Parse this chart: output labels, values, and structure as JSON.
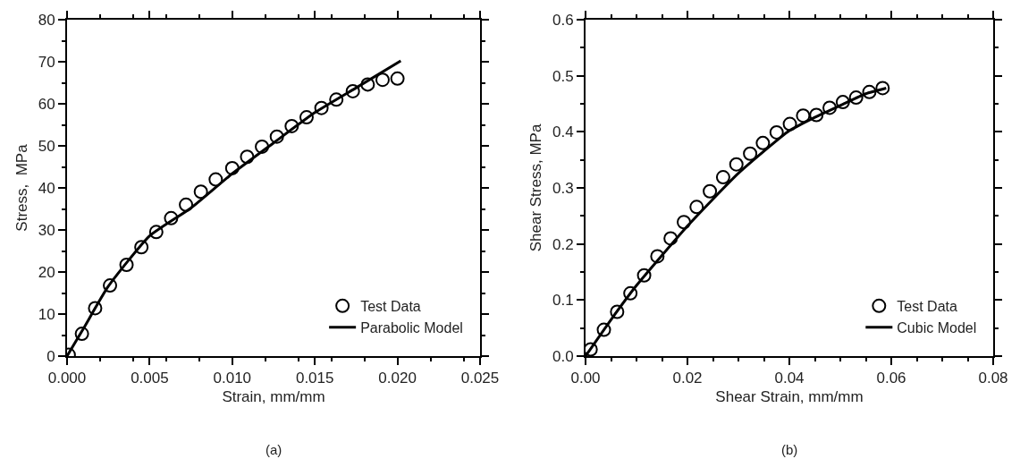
{
  "chart_data": [
    {
      "type": "scatter",
      "xlabel": "Strain, mm/mm",
      "ylabel": "Stress,  MPa",
      "annotations": [
        "(a)"
      ],
      "legend": "bottom right",
      "grid": false,
      "marker": "circle",
      "xlim": [
        0,
        0.025
      ],
      "xticks": [
        {
          "value": 0,
          "label": "0.000"
        },
        0.005,
        {
          "value": 0.01,
          "label": "0.010"
        },
        0.015,
        {
          "value": 0.02,
          "label": "0.020"
        },
        0.025
      ],
      "ylim": [
        0,
        80
      ],
      "yticks": [
        0,
        10,
        20,
        30,
        40,
        50,
        60,
        70,
        80
      ],
      "series": [
        {
          "name": "Test Data",
          "type": "scatter",
          "color": "#000000",
          "x": [
            0.0001,
            0.0009,
            0.0017,
            0.0026,
            0.0036,
            0.0045,
            0.0054,
            0.0063,
            0.0072,
            0.0081,
            0.009,
            0.01,
            0.0109,
            0.0118,
            0.0127,
            0.0136,
            0.0145,
            0.0154,
            0.0163,
            0.0173,
            0.0182,
            0.0191,
            0.02
          ],
          "values": [
            0.3,
            5.3,
            11.4,
            16.8,
            21.7,
            25.9,
            29.5,
            32.8,
            36,
            39.1,
            42,
            44.7,
            47.4,
            49.8,
            52.2,
            54.7,
            56.8,
            59,
            61,
            63,
            64.6,
            65.7,
            66
          ]
        },
        {
          "name": "Parabolic Model",
          "type": "line",
          "marker": "none",
          "color": "#000000",
          "x": [
            0,
            0.001,
            0.0025,
            0.005,
            0.0075,
            0.01,
            0.0125,
            0.015,
            0.0175,
            0.0202
          ],
          "values": [
            0,
            6.6,
            16.6,
            28.6,
            35.2,
            43.4,
            50.7,
            57.9,
            63.8,
            70.2
          ]
        }
      ]
    },
    {
      "type": "scatter",
      "xlabel": "Shear Strain, mm/mm",
      "ylabel": "Shear Stress, MPa",
      "annotations": [
        "(b)"
      ],
      "legend": "bottom right",
      "grid": false,
      "marker": "circle",
      "xlim": [
        0,
        0.08
      ],
      "xticks": [
        {
          "value": 0,
          "label": "0.00"
        },
        0.02,
        0.04,
        0.06,
        0.08
      ],
      "ylim": [
        0,
        0.6
      ],
      "yticks": [
        {
          "value": 0,
          "label": "0.0"
        },
        0.1,
        0.2,
        0.3,
        0.4,
        0.5,
        0.6
      ],
      "series": [
        {
          "name": "Test Data",
          "type": "scatter",
          "color": "#000000",
          "x": [
            0.001,
            0.0036,
            0.0062,
            0.0088,
            0.0115,
            0.0141,
            0.0167,
            0.0193,
            0.0218,
            0.0244,
            0.027,
            0.0296,
            0.0323,
            0.0348,
            0.0375,
            0.0401,
            0.0427,
            0.0453,
            0.0479,
            0.0505,
            0.0531,
            0.0557,
            0.0583
          ],
          "values": [
            0.012,
            0.047,
            0.079,
            0.112,
            0.144,
            0.178,
            0.21,
            0.239,
            0.266,
            0.294,
            0.319,
            0.342,
            0.361,
            0.38,
            0.399,
            0.414,
            0.429,
            0.43,
            0.443,
            0.453,
            0.461,
            0.471,
            0.478
          ]
        },
        {
          "name": "Cubic Model",
          "type": "line",
          "marker": "none",
          "color": "#000000",
          "x": [
            0,
            0.005,
            0.01,
            0.02,
            0.03,
            0.04,
            0.045,
            0.05,
            0.055,
            0.059
          ],
          "values": [
            0,
            0.065,
            0.126,
            0.232,
            0.326,
            0.402,
            0.426,
            0.447,
            0.468,
            0.478
          ]
        }
      ]
    }
  ]
}
